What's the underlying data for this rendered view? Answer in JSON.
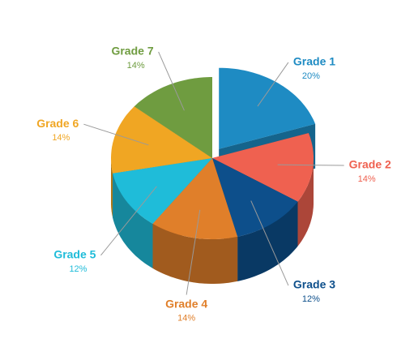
{
  "chart_data": {
    "type": "pie3d",
    "categories": [
      "Grade 1",
      "Grade 2",
      "Grade 3",
      "Grade 4",
      "Grade 5",
      "Grade 6",
      "Grade 7"
    ],
    "values": [
      20,
      14,
      12,
      14,
      12,
      14,
      14
    ],
    "value_labels": [
      "20%",
      "14%",
      "12%",
      "14%",
      "12%",
      "14%",
      "14%"
    ],
    "colors": [
      "#1e8bc3",
      "#ef6150",
      "#0d4f8b",
      "#e07f2a",
      "#1fbcd9",
      "#f0a623",
      "#6f9c40"
    ]
  }
}
